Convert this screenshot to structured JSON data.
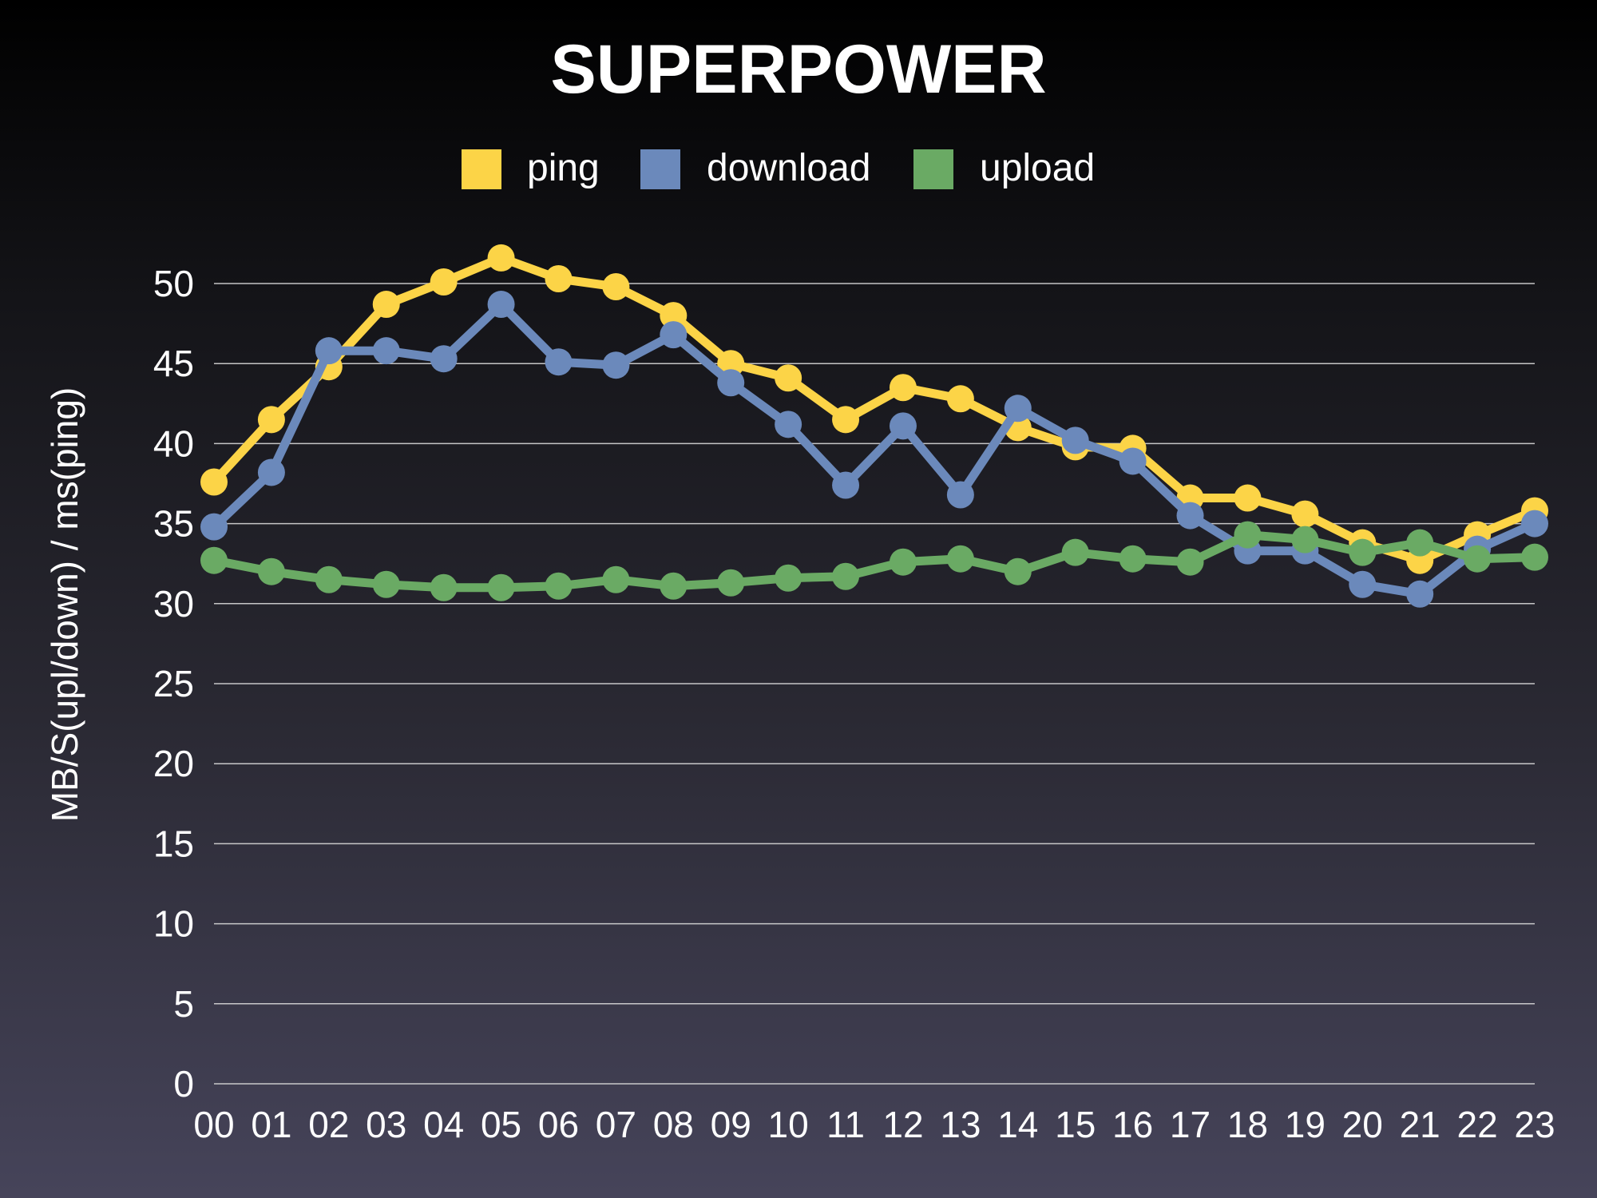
{
  "chart_data": {
    "type": "line",
    "title": "SUPERPOWER",
    "xlabel": "",
    "ylabel": "MB/S(upl/down) / ms(ping)",
    "ylim": [
      0,
      50
    ],
    "yticks": [
      "0",
      "5",
      "10",
      "15",
      "20",
      "25",
      "30",
      "35",
      "40",
      "45",
      "50"
    ],
    "grid": true,
    "legend_position": "top",
    "categories": [
      "00",
      "01",
      "02",
      "03",
      "04",
      "05",
      "06",
      "07",
      "08",
      "09",
      "10",
      "11",
      "12",
      "13",
      "14",
      "15",
      "16",
      "17",
      "18",
      "19",
      "20",
      "21",
      "22",
      "23"
    ],
    "series": [
      {
        "name": "ping",
        "color": "#fcd447",
        "values": [
          37.6,
          41.5,
          44.8,
          48.7,
          50.1,
          51.6,
          50.3,
          49.8,
          48.0,
          45.0,
          44.1,
          41.5,
          43.5,
          42.8,
          41.0,
          39.8,
          39.7,
          36.6,
          36.6,
          35.6,
          33.8,
          32.7,
          34.3,
          35.8
        ]
      },
      {
        "name": "download",
        "color": "#6b89bb",
        "values": [
          34.8,
          38.2,
          45.8,
          45.8,
          45.3,
          48.7,
          45.1,
          44.9,
          46.8,
          43.8,
          41.2,
          37.4,
          41.1,
          36.8,
          42.2,
          40.2,
          38.9,
          35.5,
          33.3,
          33.3,
          31.2,
          30.6,
          33.4,
          35.0
        ]
      },
      {
        "name": "upload",
        "color": "#6aaa64",
        "values": [
          32.7,
          32.0,
          31.5,
          31.2,
          31.0,
          31.0,
          31.1,
          31.5,
          31.1,
          31.3,
          31.6,
          31.7,
          32.6,
          32.8,
          32.0,
          33.2,
          32.8,
          32.6,
          34.3,
          34.0,
          33.2,
          33.8,
          32.8,
          32.9
        ]
      }
    ]
  }
}
